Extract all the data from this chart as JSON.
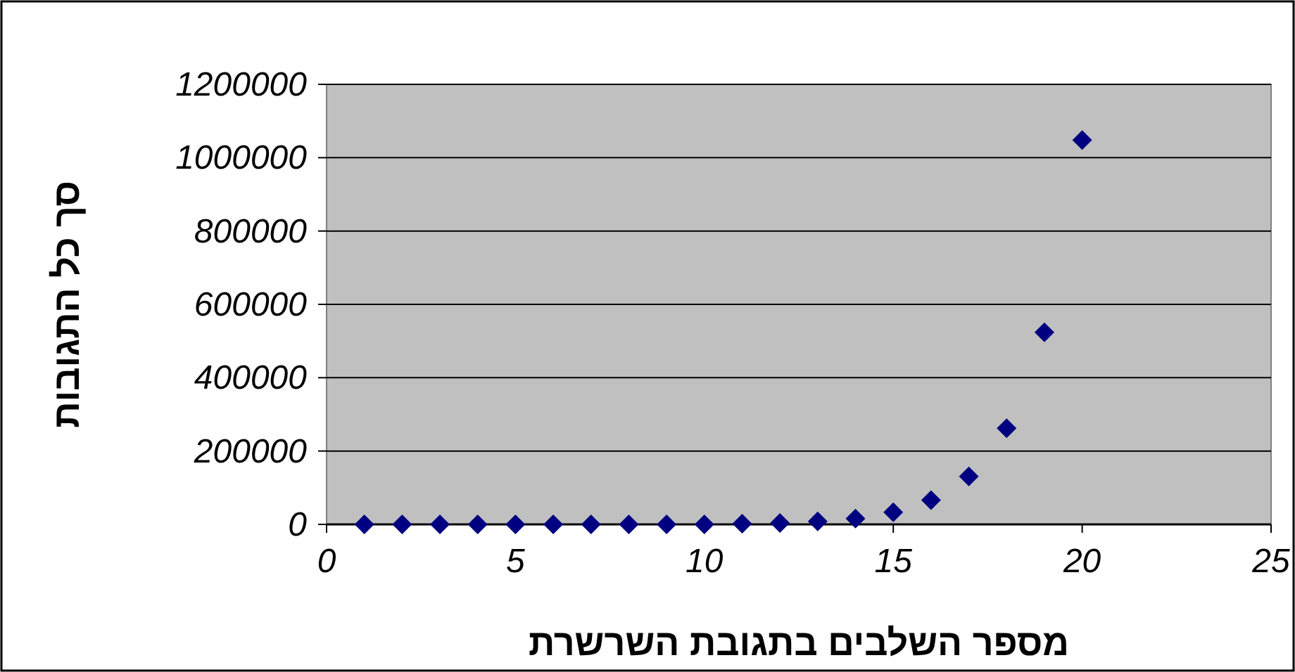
{
  "chart_data": {
    "type": "scatter",
    "xlabel": "מספר השלבים בתגובת השרשרת",
    "ylabel": "סך כל התגובות",
    "x": [
      1,
      2,
      3,
      4,
      5,
      6,
      7,
      8,
      9,
      10,
      11,
      12,
      13,
      14,
      15,
      16,
      17,
      18,
      19,
      20
    ],
    "series": [
      {
        "color": "#000080",
        "values": [
          0,
          0,
          0,
          0,
          0,
          0,
          0,
          0,
          0,
          0,
          2000,
          4000,
          8000,
          16000,
          33000,
          66000,
          131000,
          262000,
          524000,
          1048000
        ]
      }
    ],
    "xlim": [
      0,
      25
    ],
    "xticks": [
      0,
      5,
      10,
      15,
      20,
      25
    ],
    "ylim": [
      0,
      1200000
    ],
    "yticks": [
      0,
      200000,
      400000,
      600000,
      800000,
      1000000,
      1200000
    ],
    "grid": "y",
    "marker": "diamond"
  }
}
